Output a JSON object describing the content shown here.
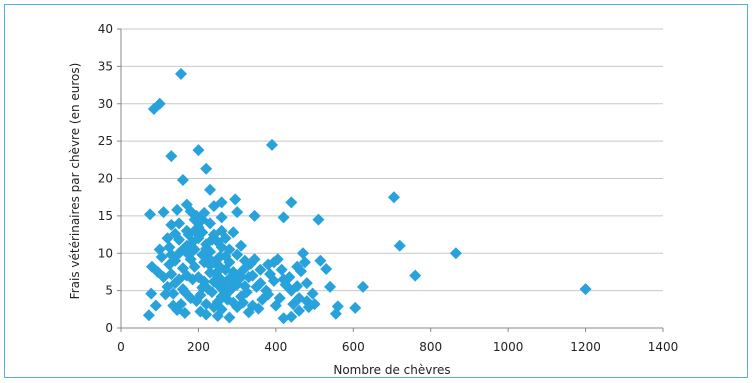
{
  "colors": {
    "marker": "#27a2db",
    "frame": "#4cb0e0",
    "grid": "#c8c8c8",
    "axis": "#888888"
  },
  "chart_data": {
    "type": "scatter",
    "title": "",
    "xlabel": "Nombre de chèvres",
    "ylabel": "Frais vétérinaires par chèvre (en euros)",
    "xlim": [
      0,
      1400
    ],
    "ylim": [
      0,
      40
    ],
    "xticks": [
      0,
      200,
      400,
      600,
      800,
      1000,
      1200,
      1400
    ],
    "yticks": [
      0,
      5,
      10,
      15,
      20,
      25,
      30,
      35,
      40
    ],
    "grid": "horizontal",
    "legend": "none",
    "series": [
      {
        "marker": "diamond",
        "points": [
          [
            155,
            34
          ],
          [
            85,
            29.3
          ],
          [
            100,
            30
          ],
          [
            200,
            23.8
          ],
          [
            130,
            23
          ],
          [
            390,
            24.5
          ],
          [
            220,
            21.3
          ],
          [
            160,
            19.8
          ],
          [
            230,
            18.5
          ],
          [
            295,
            17.2
          ],
          [
            75,
            15.2
          ],
          [
            110,
            15.5
          ],
          [
            145,
            15.8
          ],
          [
            170,
            16.5
          ],
          [
            195,
            15
          ],
          [
            210,
            14.5
          ],
          [
            240,
            16.3
          ],
          [
            260,
            16.8
          ],
          [
            300,
            15.5
          ],
          [
            345,
            15
          ],
          [
            420,
            14.8
          ],
          [
            440,
            16.8
          ],
          [
            510,
            14.5
          ],
          [
            705,
            17.5
          ],
          [
            720,
            11
          ],
          [
            760,
            7
          ],
          [
            865,
            10
          ],
          [
            1200,
            5.2
          ],
          [
            625,
            5.5
          ],
          [
            605,
            2.7
          ],
          [
            560,
            2.9
          ],
          [
            555,
            1.9
          ],
          [
            540,
            5.5
          ],
          [
            530,
            7.9
          ],
          [
            515,
            9
          ],
          [
            470,
            10
          ],
          [
            455,
            8.2
          ],
          [
            480,
            3.6
          ],
          [
            460,
            2.3
          ],
          [
            440,
            1.5
          ],
          [
            420,
            1.3
          ],
          [
            410,
            4
          ],
          [
            395,
            6.3
          ],
          [
            380,
            8.5
          ],
          [
            360,
            7.8
          ],
          [
            350,
            5.5
          ],
          [
            340,
            3
          ],
          [
            330,
            2.1
          ],
          [
            320,
            9
          ],
          [
            310,
            11
          ],
          [
            290,
            12.8
          ],
          [
            280,
            1.4
          ],
          [
            270,
            6
          ],
          [
            255,
            9.5
          ],
          [
            250,
            3.5
          ],
          [
            245,
            7.2
          ],
          [
            235,
            11.8
          ],
          [
            225,
            5.2
          ],
          [
            215,
            8.8
          ],
          [
            205,
            2.2
          ],
          [
            190,
            10.5
          ],
          [
            185,
            6.5
          ],
          [
            180,
            4
          ],
          [
            175,
            12.5
          ],
          [
            165,
            2
          ],
          [
            160,
            8
          ],
          [
            150,
            10
          ],
          [
            140,
            6
          ],
          [
            135,
            3
          ],
          [
            125,
            8.5
          ],
          [
            120,
            12
          ],
          [
            115,
            4.5
          ],
          [
            105,
            9.5
          ],
          [
            95,
            7.5
          ],
          [
            90,
            3
          ],
          [
            80,
            8.2
          ],
          [
            78,
            4.6
          ],
          [
            72,
            1.7
          ],
          [
            100,
            10.5
          ],
          [
            130,
            13.8
          ],
          [
            150,
            14
          ],
          [
            170,
            13
          ],
          [
            200,
            12
          ],
          [
            230,
            14
          ],
          [
            260,
            13
          ],
          [
            280,
            10.5
          ],
          [
            300,
            9.8
          ],
          [
            320,
            8
          ],
          [
            340,
            7
          ],
          [
            360,
            6
          ],
          [
            380,
            4.5
          ],
          [
            400,
            3
          ],
          [
            420,
            6.5
          ],
          [
            440,
            5
          ],
          [
            460,
            4
          ],
          [
            480,
            6
          ],
          [
            500,
            3.2
          ],
          [
            250,
            5.8
          ],
          [
            260,
            4.2
          ],
          [
            270,
            7.8
          ],
          [
            240,
            6.2
          ],
          [
            230,
            7.4
          ],
          [
            220,
            3.2
          ],
          [
            210,
            5.4
          ],
          [
            200,
            6.8
          ],
          [
            190,
            8.2
          ],
          [
            180,
            9.2
          ],
          [
            170,
            7
          ],
          [
            160,
            5.2
          ],
          [
            150,
            6.5
          ],
          [
            140,
            9
          ],
          [
            130,
            7.2
          ],
          [
            120,
            5.5
          ],
          [
            110,
            6.8
          ],
          [
            240,
            2.8
          ],
          [
            250,
            1.6
          ],
          [
            260,
            2.5
          ],
          [
            220,
            1.8
          ],
          [
            300,
            2.8
          ],
          [
            310,
            4.2
          ],
          [
            320,
            5.6
          ],
          [
            330,
            6.8
          ],
          [
            290,
            7.5
          ],
          [
            280,
            8.8
          ],
          [
            270,
            9.6
          ],
          [
            260,
            10.8
          ],
          [
            250,
            11.5
          ],
          [
            240,
            12.5
          ],
          [
            230,
            10.2
          ],
          [
            220,
            11.2
          ],
          [
            210,
            12.8
          ],
          [
            200,
            13.5
          ],
          [
            190,
            14.5
          ],
          [
            180,
            15.6
          ],
          [
            170,
            11
          ],
          [
            160,
            10.5
          ],
          [
            150,
            11.8
          ],
          [
            140,
            12.6
          ],
          [
            130,
            9.8
          ],
          [
            275,
            3.8
          ],
          [
            285,
            5.2
          ],
          [
            295,
            6.2
          ],
          [
            305,
            7.2
          ],
          [
            315,
            3.4
          ],
          [
            325,
            4.8
          ],
          [
            335,
            8.6
          ],
          [
            345,
            9.2
          ],
          [
            355,
            2.6
          ],
          [
            365,
            3.8
          ],
          [
            375,
            5
          ],
          [
            385,
            7.2
          ],
          [
            395,
            8.8
          ],
          [
            405,
            9.2
          ],
          [
            415,
            7.8
          ],
          [
            425,
            5.8
          ],
          [
            435,
            6.8
          ],
          [
            445,
            3.2
          ],
          [
            455,
            5.6
          ],
          [
            465,
            7.6
          ],
          [
            475,
            8.8
          ],
          [
            485,
            2.8
          ],
          [
            495,
            4.6
          ],
          [
            195,
            3.6
          ],
          [
            205,
            4.4
          ],
          [
            215,
            6.2
          ],
          [
            225,
            9.4
          ],
          [
            235,
            4.8
          ],
          [
            245,
            9
          ],
          [
            255,
            8.2
          ],
          [
            265,
            5
          ],
          [
            185,
            11.5
          ],
          [
            175,
            9.8
          ],
          [
            165,
            4.8
          ],
          [
            155,
            3.2
          ],
          [
            145,
            2.4
          ],
          [
            135,
            4.6
          ],
          [
            125,
            10.8
          ],
          [
            210,
            9.8
          ],
          [
            220,
            10.6
          ],
          [
            230,
            8.4
          ],
          [
            240,
            8.8
          ],
          [
            250,
            7.6
          ],
          [
            260,
            6.4
          ],
          [
            270,
            4.4
          ],
          [
            280,
            6.6
          ],
          [
            290,
            3.4
          ],
          [
            300,
            5.8
          ],
          [
            310,
            6.8
          ],
          [
            270,
            12
          ],
          [
            260,
            14.8
          ],
          [
            215,
            15.4
          ],
          [
            190,
            13
          ]
        ]
      }
    ]
  }
}
